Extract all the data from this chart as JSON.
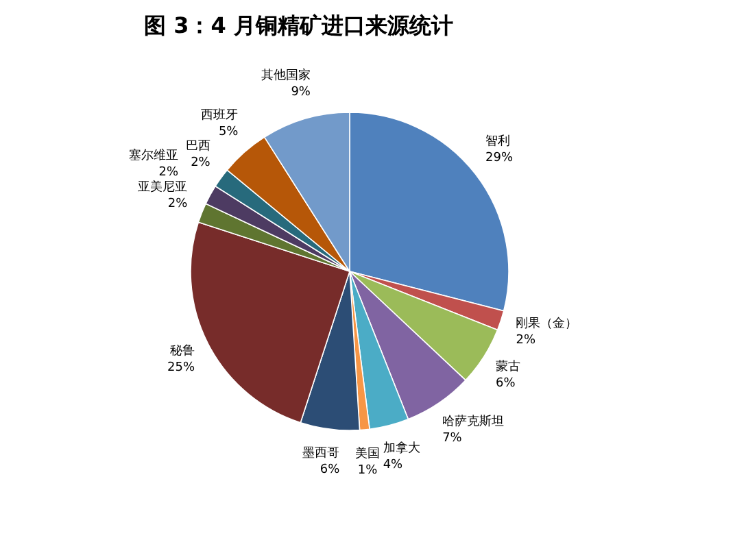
{
  "chart_data": {
    "type": "pie",
    "title": "图 3：4 月铜精矿进口来源统计",
    "categories": [
      "智利",
      "刚果（金）",
      "蒙古",
      "哈萨克斯坦",
      "加拿大",
      "美国",
      "墨西哥",
      "秘鲁",
      "亚美尼亚",
      "塞尔维亚",
      "巴西",
      "西班牙",
      "其他国家"
    ],
    "values": [
      29,
      2,
      6,
      7,
      4,
      1,
      6,
      25,
      2,
      2,
      2,
      5,
      9
    ],
    "value_labels": [
      "29%",
      "2%",
      "6%",
      "7%",
      "4%",
      "1%",
      "6%",
      "25%",
      "2%",
      "2%",
      "2%",
      "5%",
      "9%"
    ],
    "colors": [
      "#4f81bd",
      "#c0504d",
      "#9bbb59",
      "#8064a2",
      "#4bacc6",
      "#f79646",
      "#2c4d75",
      "#772c2a",
      "#5f7530",
      "#4d3b62",
      "#276a7c",
      "#b65708",
      "#729aca"
    ]
  }
}
